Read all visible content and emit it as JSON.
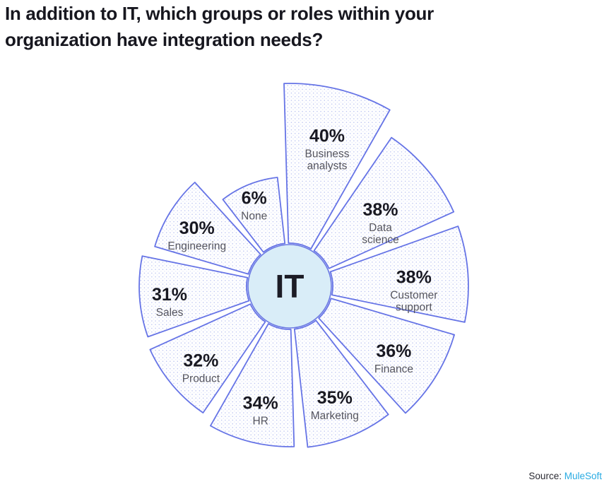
{
  "header": {
    "title": "In addition to IT, which groups or roles within your organization have integration needs?",
    "title_line1": "In addition to IT, which groups or roles within your",
    "title_line2": "organization have integration needs?"
  },
  "source": {
    "prefix": "Source:",
    "link": "MuleSoft"
  },
  "chart_data": {
    "type": "polar-wedge-rose",
    "title": "In addition to IT, which groups or roles within your organization have integration needs?",
    "center_label": "IT",
    "units": "%",
    "legend_position": "none",
    "grid": false,
    "wedges": [
      {
        "label": "Business analysts",
        "lines": [
          "Business",
          "analysts"
        ],
        "value": 40,
        "pct": "40%",
        "outer_r": 287
      },
      {
        "label": "Data science",
        "lines": [
          "Data",
          "science"
        ],
        "value": 38,
        "pct": "38%",
        "outer_r": 255
      },
      {
        "label": "Customer support",
        "lines": [
          "Customer",
          "support"
        ],
        "value": 38,
        "pct": "38%",
        "outer_r": 253
      },
      {
        "label": "Finance",
        "lines": [
          "Finance"
        ],
        "value": 36,
        "pct": "36%",
        "outer_r": 243
      },
      {
        "label": "Marketing",
        "lines": [
          "Marketing"
        ],
        "value": 35,
        "pct": "35%",
        "outer_r": 229
      },
      {
        "label": "HR",
        "lines": [
          "HR"
        ],
        "value": 34,
        "pct": "34%",
        "outer_r": 227
      },
      {
        "label": "Product",
        "lines": [
          "Product"
        ],
        "value": 32,
        "pct": "32%",
        "outer_r": 217
      },
      {
        "label": "Sales",
        "lines": [
          "Sales"
        ],
        "value": 31,
        "pct": "31%",
        "outer_r": 213
      },
      {
        "label": "Engineering",
        "lines": [
          "Engineering"
        ],
        "value": 30,
        "pct": "30%",
        "outer_r": 199
      },
      {
        "label": "None",
        "lines": [
          "None"
        ],
        "value": 6,
        "pct": "6%",
        "outer_r": 155
      }
    ],
    "colors": {
      "wedge_border": "#6674e6",
      "dot_dark": "#b3bdf0",
      "dot_light": "#dfe4fa",
      "center_fill": "#d9edf8",
      "center_border": "#6a79e2",
      "pct_text": "#191922",
      "cat_text": "#54545e",
      "title_text": "#17171f",
      "source_link": "#29abe2"
    }
  }
}
